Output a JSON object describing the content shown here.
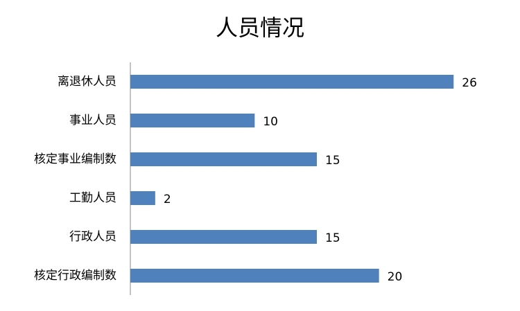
{
  "chart_data": {
    "type": "hbar",
    "title": "人员情况",
    "categories": [
      "离退休人员",
      "事业人员",
      "核定事业编制数",
      "工勤人员",
      "行政人员",
      "核定行政编制数"
    ],
    "values": [
      26,
      10,
      15,
      2,
      15,
      20
    ],
    "color": "#4f81bd",
    "xlim": [
      0,
      30
    ]
  }
}
